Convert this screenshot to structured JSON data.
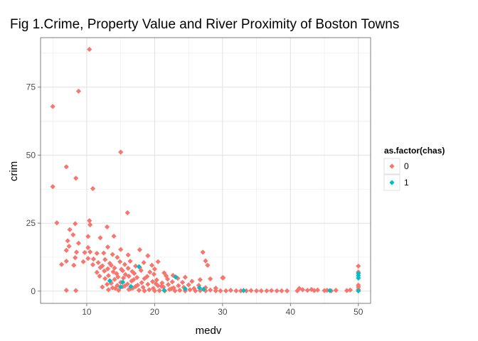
{
  "chart_data": {
    "type": "scatter",
    "title": "Fig 1.Crime, Property Value and River Proximity of Boston Towns",
    "xlabel": "medv",
    "ylabel": "crim",
    "xlim": [
      3.2,
      51.8
    ],
    "ylim": [
      -4.5,
      93.2
    ],
    "x_ticks": [
      10,
      20,
      30,
      40,
      50
    ],
    "y_ticks": [
      0,
      25,
      50,
      75
    ],
    "grid": true,
    "legend": {
      "title": "as.factor(chas)",
      "position": "right",
      "entries": [
        "0",
        "1"
      ]
    },
    "colors": {
      "0": "#F8766D",
      "1": "#00BFC4"
    },
    "background": "#ffffff",
    "gridline_color": "#ebebeb",
    "series": [
      {
        "name": "0",
        "points": [
          [
            10.4,
            88.9
          ],
          [
            8.8,
            73.5
          ],
          [
            5.0,
            67.9
          ],
          [
            15.0,
            51.1
          ],
          [
            7.0,
            45.7
          ],
          [
            8.4,
            41.5
          ],
          [
            5.0,
            38.4
          ],
          [
            10.9,
            37.7
          ],
          [
            16.0,
            28.8
          ],
          [
            10.4,
            25.9
          ],
          [
            5.6,
            25.1
          ],
          [
            8.3,
            24.8
          ],
          [
            10.5,
            24.4
          ],
          [
            7.5,
            22.6
          ],
          [
            13.0,
            23.6
          ],
          [
            8.0,
            20.7
          ],
          [
            10.2,
            20.1
          ],
          [
            12.0,
            19.6
          ],
          [
            14.0,
            20.2
          ],
          [
            7.2,
            18.5
          ],
          [
            8.8,
            17.6
          ],
          [
            7.4,
            16.5
          ],
          [
            10.2,
            16.0
          ],
          [
            13.1,
            16.2
          ],
          [
            15.0,
            15.3
          ],
          [
            17.8,
            15.2
          ],
          [
            7.0,
            15.0
          ],
          [
            8.5,
            14.3
          ],
          [
            9.7,
            14.2
          ],
          [
            10.5,
            14.4
          ],
          [
            11.5,
            13.9
          ],
          [
            12.5,
            14.0
          ],
          [
            13.8,
            13.5
          ],
          [
            16.1,
            13.3
          ],
          [
            19.0,
            13.0
          ],
          [
            8.3,
            12.3
          ],
          [
            10.2,
            12.0
          ],
          [
            11.0,
            11.8
          ],
          [
            12.7,
            11.6
          ],
          [
            14.5,
            12.4
          ],
          [
            7.0,
            11.0
          ],
          [
            9.5,
            10.8
          ],
          [
            11.7,
            10.5
          ],
          [
            13.4,
            10.2
          ],
          [
            14.9,
            10.8
          ],
          [
            16.4,
            11.0
          ],
          [
            18.4,
            10.5
          ],
          [
            20.5,
            10.8
          ],
          [
            6.3,
            9.8
          ],
          [
            8.1,
            9.5
          ],
          [
            10.9,
            9.7
          ],
          [
            12.3,
            9.3
          ],
          [
            13.6,
            9.5
          ],
          [
            15.6,
            9.8
          ],
          [
            17.2,
            9.2
          ],
          [
            19.6,
            9.5
          ],
          [
            12.0,
            8.7
          ],
          [
            13.1,
            8.2
          ],
          [
            14.1,
            8.5
          ],
          [
            15.1,
            8.0
          ],
          [
            16.1,
            8.4
          ],
          [
            17.8,
            8.7
          ],
          [
            20.0,
            8.1
          ],
          [
            12.6,
            7.4
          ],
          [
            13.9,
            7.1
          ],
          [
            15.3,
            7.5
          ],
          [
            16.7,
            7.2
          ],
          [
            18.0,
            7.6
          ],
          [
            19.3,
            7.0
          ],
          [
            11.5,
            6.9
          ],
          [
            14.4,
            6.4
          ],
          [
            15.7,
            6.1
          ],
          [
            17.0,
            6.5
          ],
          [
            19.9,
            6.2
          ],
          [
            21.4,
            6.7
          ],
          [
            11.9,
            5.5
          ],
          [
            13.2,
            5.7
          ],
          [
            14.6,
            5.2
          ],
          [
            16.2,
            5.5
          ],
          [
            17.4,
            5.0
          ],
          [
            18.9,
            5.4
          ],
          [
            21.7,
            5.6
          ],
          [
            22.7,
            5.8
          ],
          [
            24.5,
            5.1
          ],
          [
            12.7,
            4.6
          ],
          [
            14.1,
            4.3
          ],
          [
            15.4,
            4.8
          ],
          [
            16.9,
            4.2
          ],
          [
            18.5,
            4.6
          ],
          [
            20.3,
            4.1
          ],
          [
            21.9,
            4.4
          ],
          [
            23.4,
            4.7
          ],
          [
            26.7,
            4.2
          ],
          [
            28.2,
            4.5
          ],
          [
            30.1,
            4.9
          ],
          [
            13.5,
            3.6
          ],
          [
            15.0,
            3.2
          ],
          [
            16.6,
            3.7
          ],
          [
            18.1,
            3.1
          ],
          [
            19.7,
            3.5
          ],
          [
            21.1,
            3.0
          ],
          [
            22.6,
            3.4
          ],
          [
            24.1,
            3.2
          ],
          [
            25.5,
            3.6
          ],
          [
            13.0,
            2.5
          ],
          [
            14.5,
            2.1
          ],
          [
            16.0,
            2.6
          ],
          [
            17.5,
            2.2
          ],
          [
            19.0,
            2.5
          ],
          [
            20.5,
            2.0
          ],
          [
            22.0,
            2.4
          ],
          [
            23.5,
            2.0
          ],
          [
            25.0,
            2.3
          ],
          [
            26.5,
            2.1
          ],
          [
            12.3,
            1.5
          ],
          [
            13.8,
            1.2
          ],
          [
            15.3,
            1.6
          ],
          [
            16.8,
            1.1
          ],
          [
            18.3,
            1.4
          ],
          [
            19.8,
            1.0
          ],
          [
            21.3,
            1.5
          ],
          [
            22.8,
            1.2
          ],
          [
            24.3,
            1.4
          ],
          [
            25.8,
            1.0
          ],
          [
            27.5,
            1.3
          ],
          [
            29.0,
            1.1
          ],
          [
            13.2,
            0.5
          ],
          [
            14.7,
            0.3
          ],
          [
            16.2,
            0.6
          ],
          [
            17.7,
            0.3
          ],
          [
            19.2,
            0.5
          ],
          [
            20.7,
            0.2
          ],
          [
            22.2,
            0.6
          ],
          [
            23.7,
            0.3
          ],
          [
            25.2,
            0.5
          ],
          [
            26.7,
            0.2
          ],
          [
            28.2,
            0.4
          ],
          [
            29.7,
            0.1
          ],
          [
            31.2,
            0.3
          ],
          [
            32.7,
            0.1
          ],
          [
            34.2,
            0.2
          ],
          [
            35.7,
            0.1
          ],
          [
            37.2,
            0.2
          ],
          [
            38.7,
            0.1
          ],
          [
            7.0,
            0.3
          ],
          [
            8.4,
            0.2
          ],
          [
            18.5,
            0.1
          ],
          [
            20.0,
            0.1
          ],
          [
            21.5,
            0.1
          ],
          [
            23.0,
            0.1
          ],
          [
            24.5,
            0.1
          ],
          [
            26.0,
            0.1
          ],
          [
            27.5,
            0.1
          ],
          [
            29.0,
            0.1
          ],
          [
            30.5,
            0.1
          ],
          [
            32.0,
            0.1
          ],
          [
            33.5,
            0.1
          ],
          [
            35.0,
            0.1
          ],
          [
            36.5,
            0.1
          ],
          [
            38.0,
            0.1
          ],
          [
            39.5,
            0.1
          ],
          [
            41.0,
            0.1
          ],
          [
            41.3,
            1.0
          ],
          [
            41.8,
            0.5
          ],
          [
            42.5,
            0.3
          ],
          [
            43.1,
            0.6
          ],
          [
            43.5,
            0.2
          ],
          [
            44.0,
            0.4
          ],
          [
            45.0,
            0.2
          ],
          [
            45.4,
            0.3
          ],
          [
            46.0,
            0.1
          ],
          [
            46.7,
            0.3
          ],
          [
            48.3,
            0.2
          ],
          [
            48.8,
            0.4
          ],
          [
            50.0,
            9.2
          ],
          [
            50.0,
            7.0
          ],
          [
            50.0,
            2.2
          ],
          [
            50.0,
            1.5
          ],
          [
            50.0,
            0.6
          ],
          [
            50.0,
            0.1
          ],
          [
            27.1,
            14.3
          ],
          [
            27.5,
            11.1
          ],
          [
            30.0,
            4.9
          ],
          [
            27.8,
            9.5
          ],
          [
            20.2,
            2.7
          ],
          [
            21.0,
            1.8
          ],
          [
            22.5,
            0.9
          ],
          [
            15.6,
            1.9
          ],
          [
            17.2,
            1.7
          ],
          [
            13.6,
            2.9
          ],
          [
            14.2,
            1.0
          ],
          [
            16.5,
            0.9
          ]
        ]
      },
      {
        "name": "1",
        "points": [
          [
            13.4,
            3.8
          ],
          [
            15.3,
            3.3
          ],
          [
            16.5,
            1.7
          ],
          [
            17.7,
            9.0
          ],
          [
            23.1,
            5.2
          ],
          [
            24.5,
            0.8
          ],
          [
            26.6,
            1.2
          ],
          [
            27.2,
            0.7
          ],
          [
            33.1,
            0.2
          ],
          [
            45.8,
            0.2
          ],
          [
            50.0,
            6.5
          ],
          [
            50.0,
            5.7
          ],
          [
            50.0,
            4.8
          ],
          [
            50.0,
            0.1
          ],
          [
            15.0,
            1.5
          ],
          [
            21.4,
            0.3
          ]
        ]
      }
    ]
  }
}
